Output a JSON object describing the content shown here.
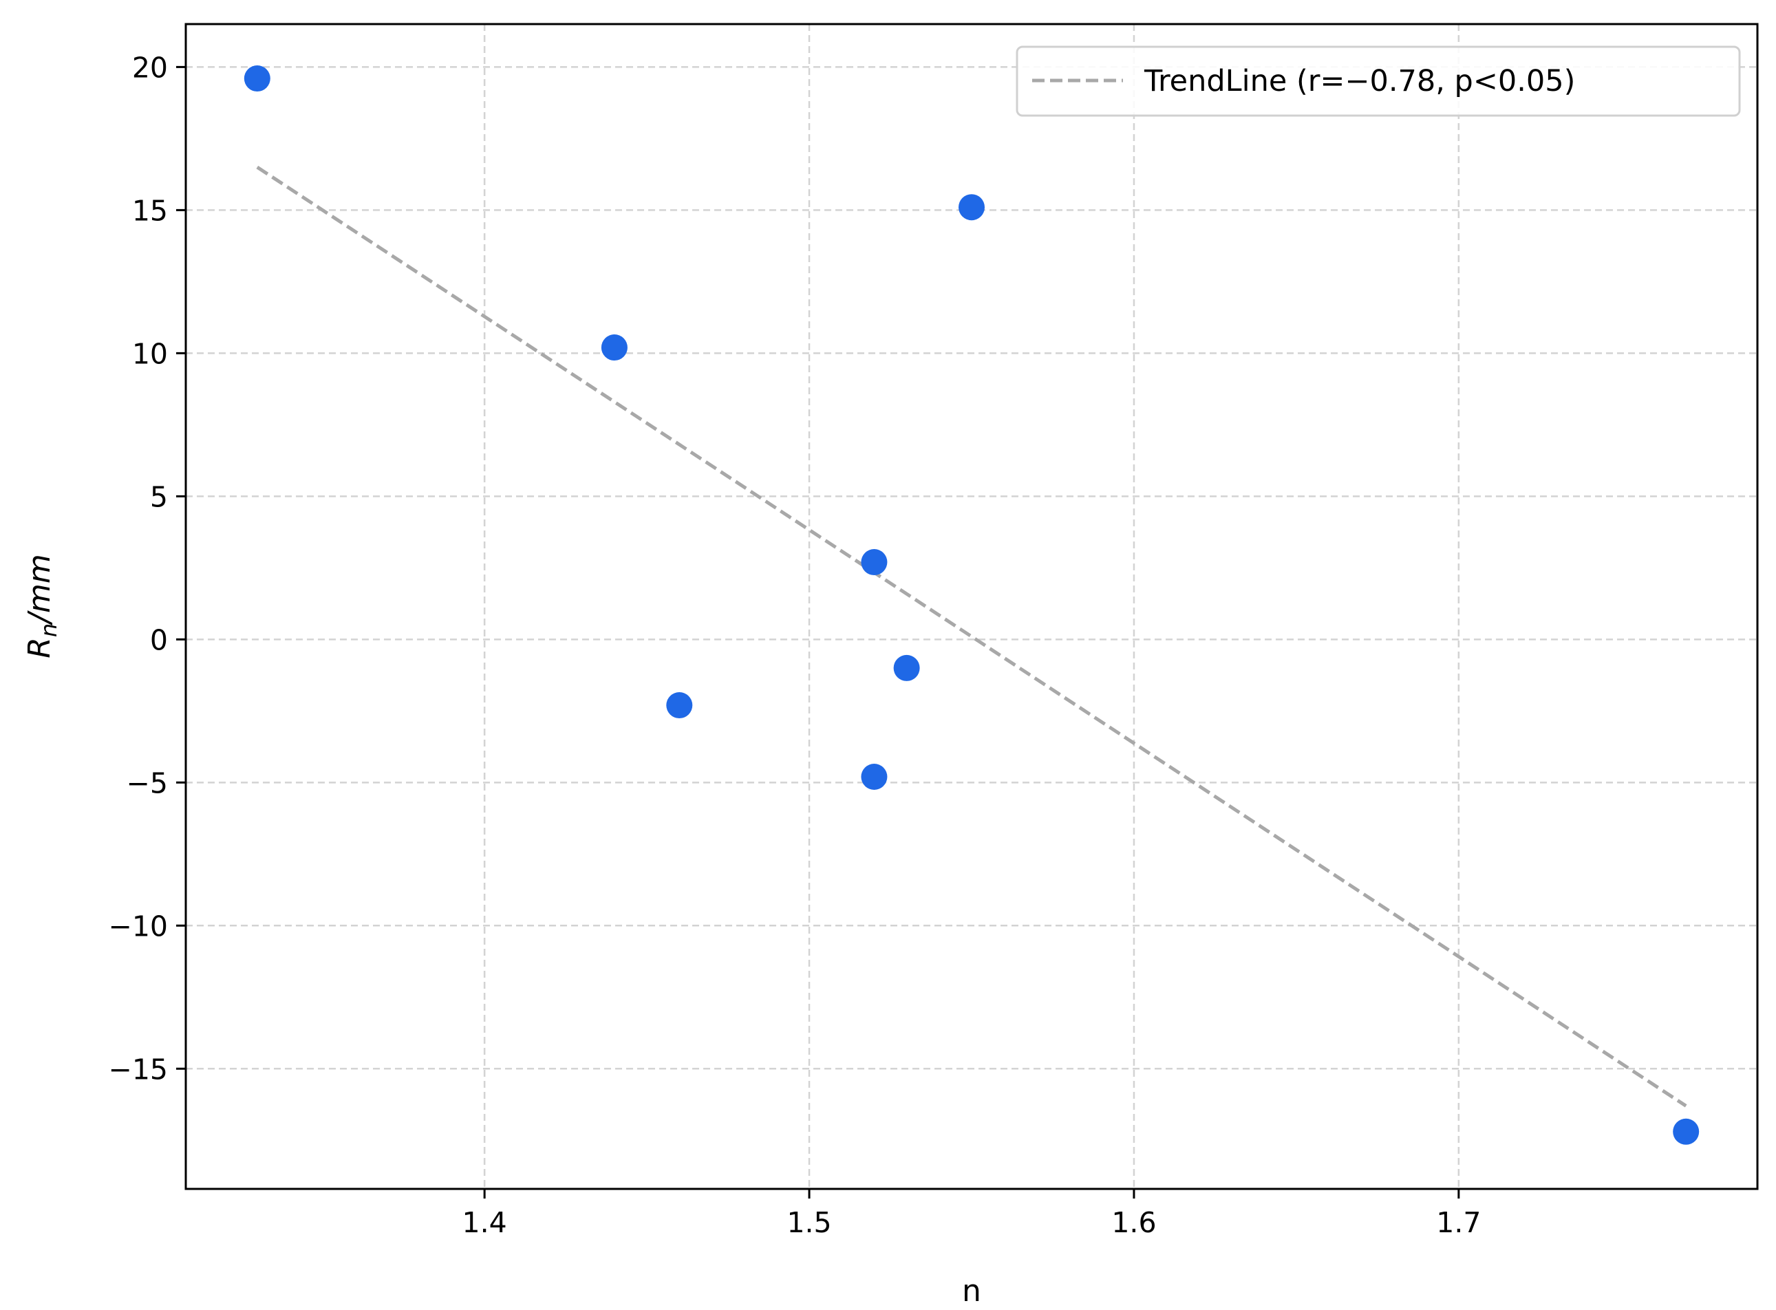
{
  "chart_data": {
    "type": "scatter",
    "xlabel": "n",
    "ylabel_main": "R",
    "ylabel_sub": "n",
    "ylabel_unit": "/mm",
    "xlim": [
      1.308,
      1.792
    ],
    "ylim": [
      -19.2,
      21.5
    ],
    "xticks": [
      1.4,
      1.5,
      1.6,
      1.7
    ],
    "xtick_labels": [
      "1.4",
      "1.5",
      "1.6",
      "1.7"
    ],
    "yticks": [
      -15,
      -10,
      -5,
      0,
      5,
      10,
      15,
      20
    ],
    "ytick_labels": [
      "−15",
      "−10",
      "−5",
      "0",
      "5",
      "10",
      "15",
      "20"
    ],
    "grid": true,
    "legend_placement": "top-right",
    "points": [
      {
        "x": 1.33,
        "y": 19.6
      },
      {
        "x": 1.44,
        "y": 10.2
      },
      {
        "x": 1.46,
        "y": -2.3
      },
      {
        "x": 1.52,
        "y": 2.7
      },
      {
        "x": 1.52,
        "y": -4.8
      },
      {
        "x": 1.53,
        "y": -1.0
      },
      {
        "x": 1.55,
        "y": 15.1
      },
      {
        "x": 1.77,
        "y": -17.2
      }
    ],
    "trendline": {
      "label": "TrendLine (r=−0.78, p<0.05)",
      "x": [
        1.33,
        1.77
      ],
      "y": [
        16.5,
        -16.3
      ]
    },
    "colors": {
      "points": "#1f68e6",
      "trendline": "#a8a8a8",
      "grid": "#d3d3d3"
    }
  }
}
